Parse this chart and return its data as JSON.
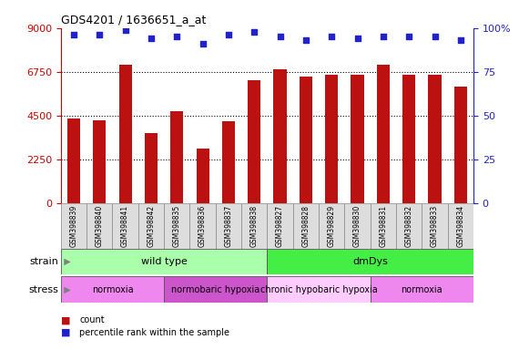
{
  "title": "GDS4201 / 1636651_a_at",
  "samples": [
    "GSM398839",
    "GSM398840",
    "GSM398841",
    "GSM398842",
    "GSM398835",
    "GSM398836",
    "GSM398837",
    "GSM398838",
    "GSM398827",
    "GSM398828",
    "GSM398829",
    "GSM398830",
    "GSM398831",
    "GSM398832",
    "GSM398833",
    "GSM398834"
  ],
  "counts": [
    4350,
    4250,
    7100,
    3600,
    4700,
    2800,
    4200,
    6300,
    6900,
    6500,
    6600,
    6600,
    7100,
    6600,
    6600,
    6000
  ],
  "percentile_ranks": [
    96,
    96,
    99,
    94,
    95,
    91,
    96,
    98,
    95,
    93,
    95,
    94,
    95,
    95,
    95,
    93
  ],
  "bar_color": "#bb1111",
  "dot_color": "#2222cc",
  "ylim_left": [
    0,
    9000
  ],
  "ylim_right": [
    0,
    100
  ],
  "yticks_left": [
    0,
    2250,
    4500,
    6750,
    9000
  ],
  "yticks_right": [
    0,
    25,
    50,
    75,
    100
  ],
  "grid_lines": [
    2250,
    4500,
    6750
  ],
  "strain_labels": [
    {
      "text": "wild type",
      "start": 0,
      "end": 8,
      "color": "#aaffaa"
    },
    {
      "text": "dmDys",
      "start": 8,
      "end": 16,
      "color": "#44ee44"
    }
  ],
  "stress_labels": [
    {
      "text": "normoxia",
      "start": 0,
      "end": 4,
      "color": "#ee88ee"
    },
    {
      "text": "normobaric hypoxia",
      "start": 4,
      "end": 8,
      "color": "#cc55cc"
    },
    {
      "text": "chronic hypobaric hypoxia",
      "start": 8,
      "end": 12,
      "color": "#ffccff"
    },
    {
      "text": "normoxia",
      "start": 12,
      "end": 16,
      "color": "#ee88ee"
    }
  ],
  "left_axis_color": "#cc0000",
  "right_axis_color": "#2222cc",
  "background_color": "#ffffff",
  "plot_bg_color": "#ffffff"
}
